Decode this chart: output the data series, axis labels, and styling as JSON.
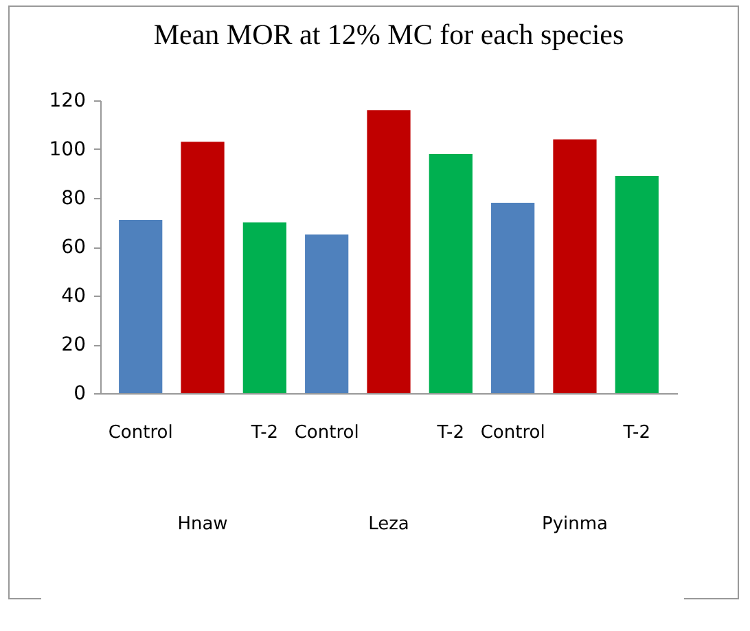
{
  "chart_data": {
    "type": "bar",
    "title": "Mean  MOR at 12% MC for each species",
    "categories": [
      "Control",
      null,
      "T-2",
      "Control",
      null,
      "T-2",
      "Control",
      null,
      "T-2"
    ],
    "values": [
      71,
      103,
      70,
      65,
      116,
      98,
      78,
      104,
      89
    ],
    "colors": [
      "#4f81bd",
      "#c00000",
      "#00b050",
      "#4f81bd",
      "#c00000",
      "#00b050",
      "#4f81bd",
      "#c00000",
      "#00b050"
    ],
    "ylim": [
      0,
      120
    ],
    "yticks": [
      0,
      20,
      40,
      60,
      80,
      100,
      120
    ],
    "grid": false,
    "annotations": [
      "Hnaw",
      "Leza",
      "Pyinma"
    ]
  }
}
